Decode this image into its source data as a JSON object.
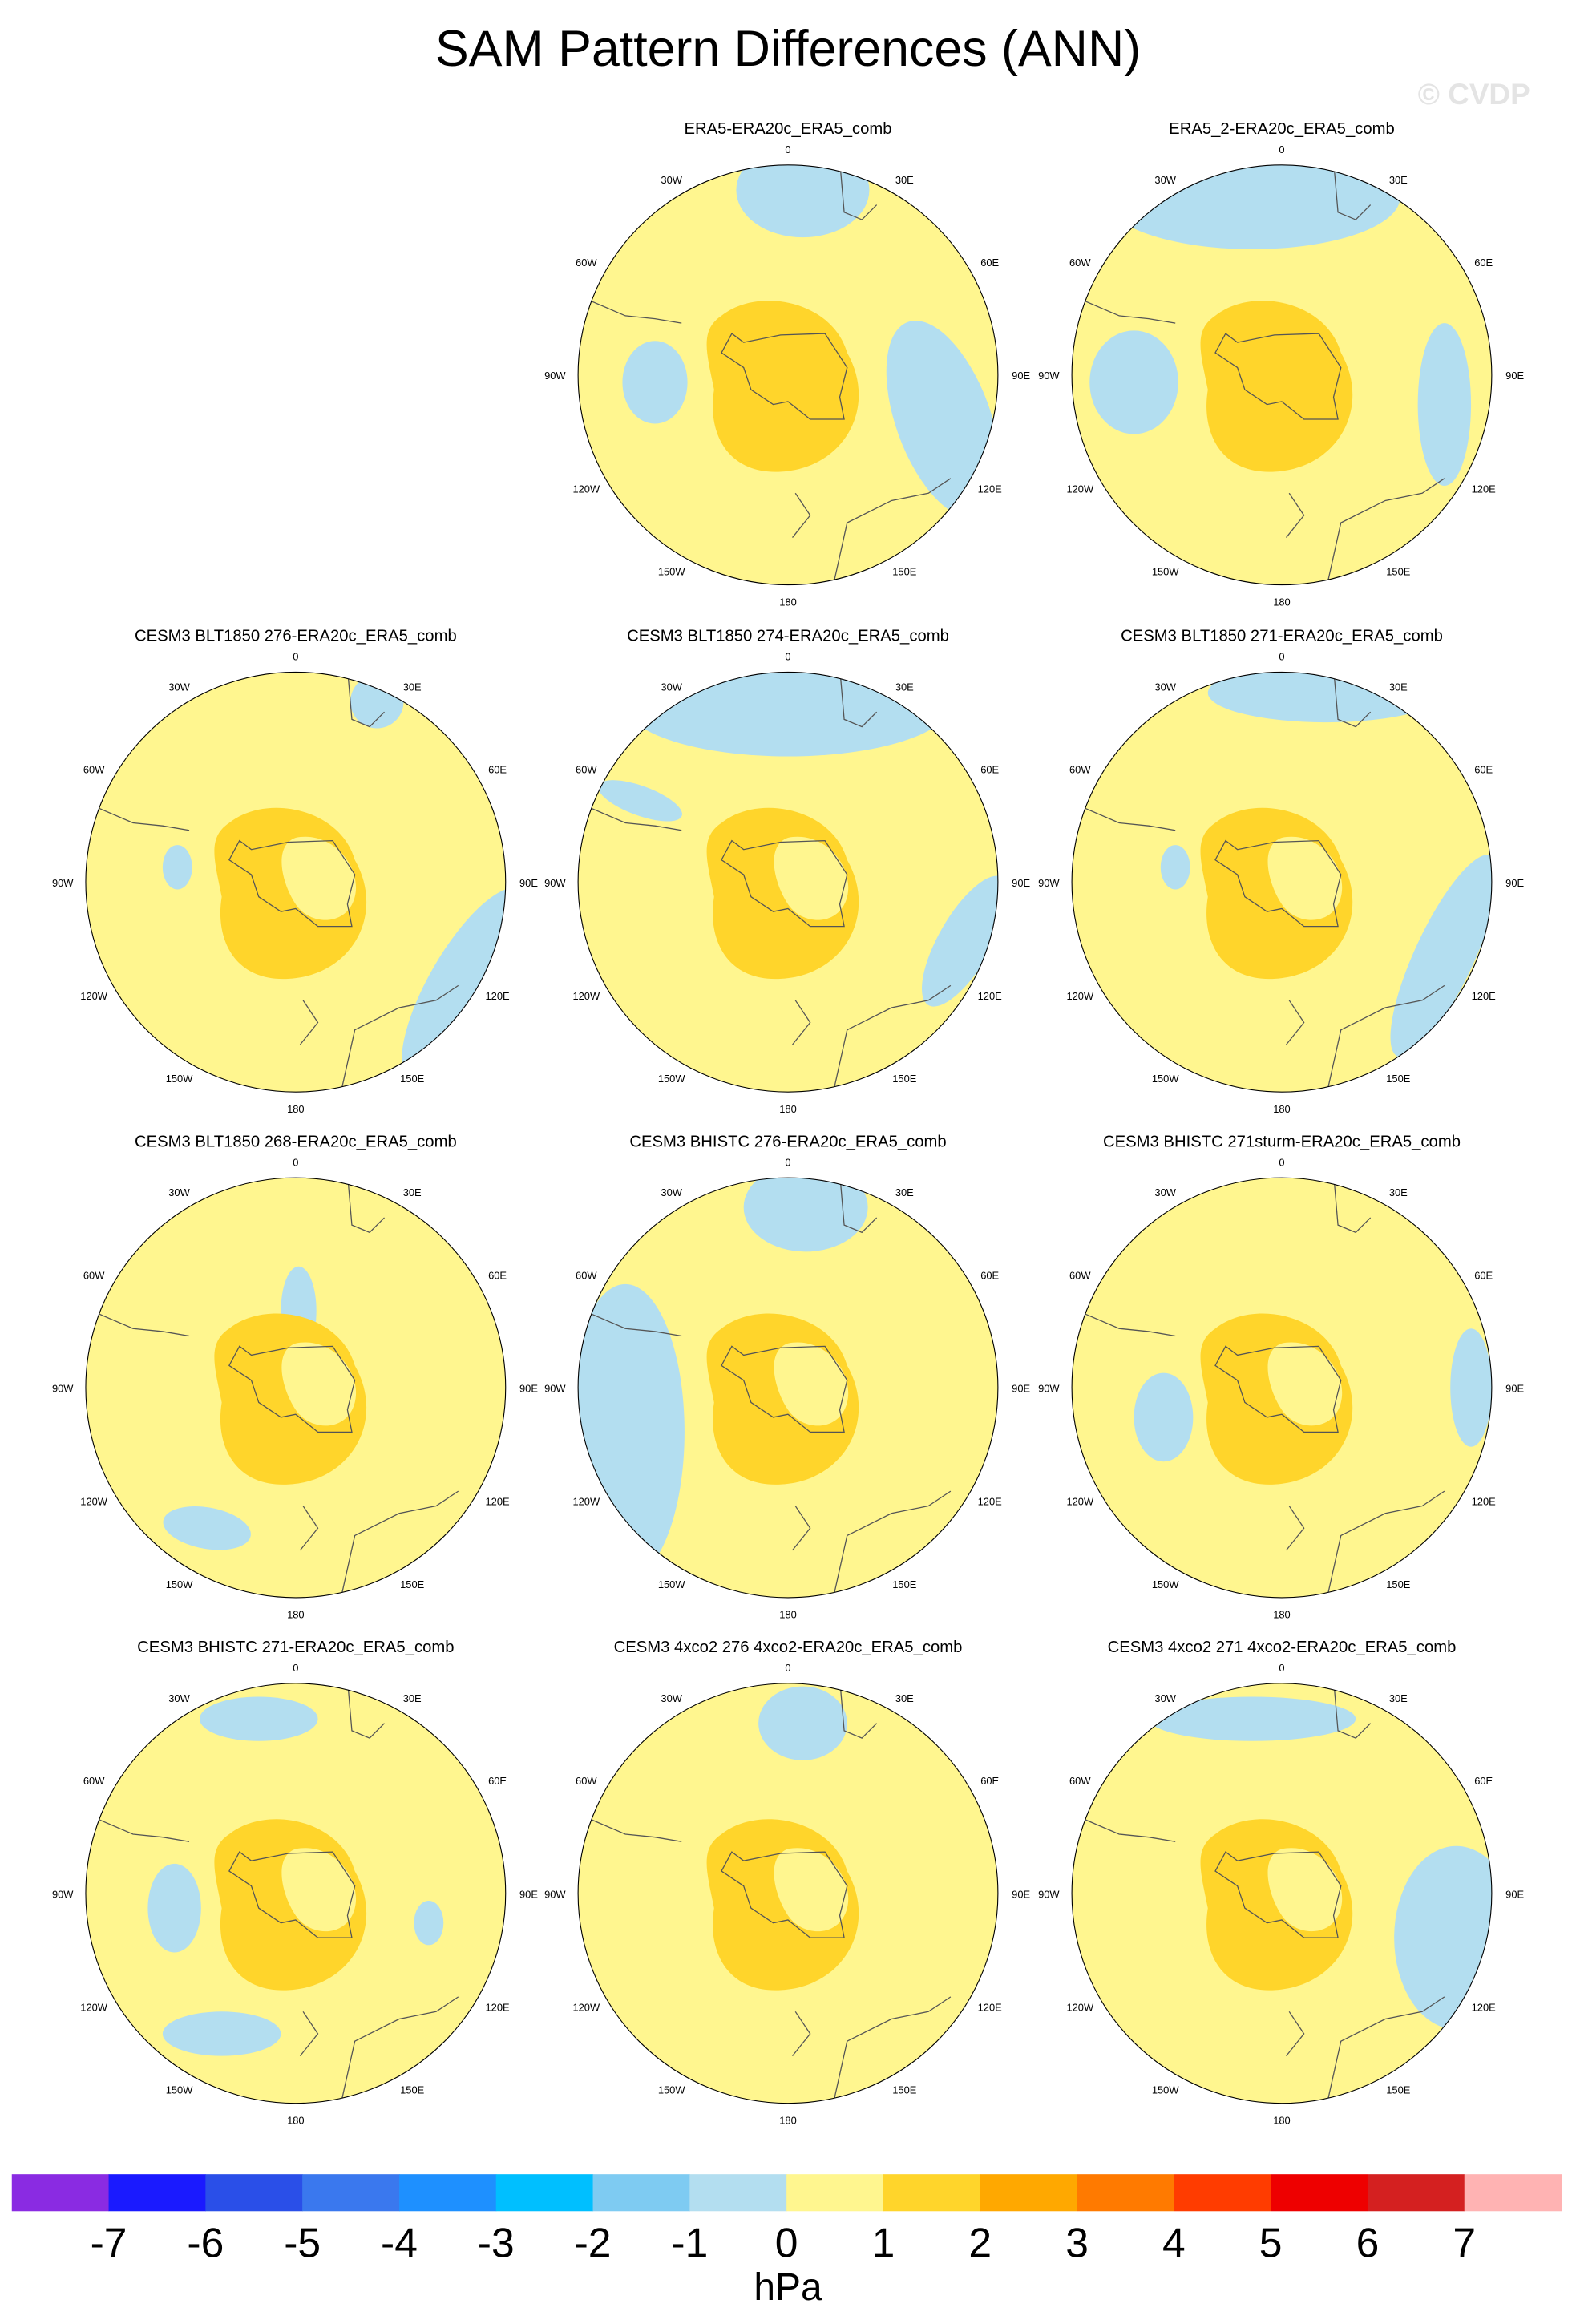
{
  "title": "SAM Pattern Differences (ANN)",
  "watermark": "© CVDP",
  "lon_labels": [
    "0",
    "30E",
    "60E",
    "90E",
    "120E",
    "150E",
    "180",
    "150W",
    "120W",
    "90W",
    "60W",
    "30W"
  ],
  "panels": [
    {
      "title": "ERA5-ERA20c_ERA5_comb"
    },
    {
      "title": "ERA5_2-ERA20c_ERA5_comb"
    },
    {
      "title": "CESM3 BLT1850 276-ERA20c_ERA5_comb"
    },
    {
      "title": "CESM3 BLT1850 274-ERA20c_ERA5_comb"
    },
    {
      "title": "CESM3 BLT1850 271-ERA20c_ERA5_comb"
    },
    {
      "title": "CESM3 BLT1850 268-ERA20c_ERA5_comb"
    },
    {
      "title": "CESM3 BHISTC 276-ERA20c_ERA5_comb"
    },
    {
      "title": "CESM3 BHISTC 271sturm-ERA20c_ERA5_comb"
    },
    {
      "title": "CESM3 BHISTC 271-ERA20c_ERA5_comb"
    },
    {
      "title": "CESM3 4xco2 276 4xco2-ERA20c_ERA5_comb"
    },
    {
      "title": "CESM3 4xco2 271 4xco2-ERA20c_ERA5_comb"
    }
  ],
  "colorbar": {
    "labels": [
      -7,
      -6,
      -5,
      -4,
      -3,
      -2,
      -1,
      0,
      1,
      2,
      3,
      4,
      5,
      6,
      7
    ],
    "colors": [
      "#8a2be2",
      "#1a1aff",
      "#2a4fe8",
      "#3a78ee",
      "#1e90ff",
      "#00bfff",
      "#7ecbf2",
      "#b3def0",
      "#fff68f",
      "#ffd52b",
      "#ffa800",
      "#ff7a00",
      "#ff3c00",
      "#ee0000",
      "#d42020",
      "#ffb3b3"
    ],
    "unit": "hPa"
  }
}
